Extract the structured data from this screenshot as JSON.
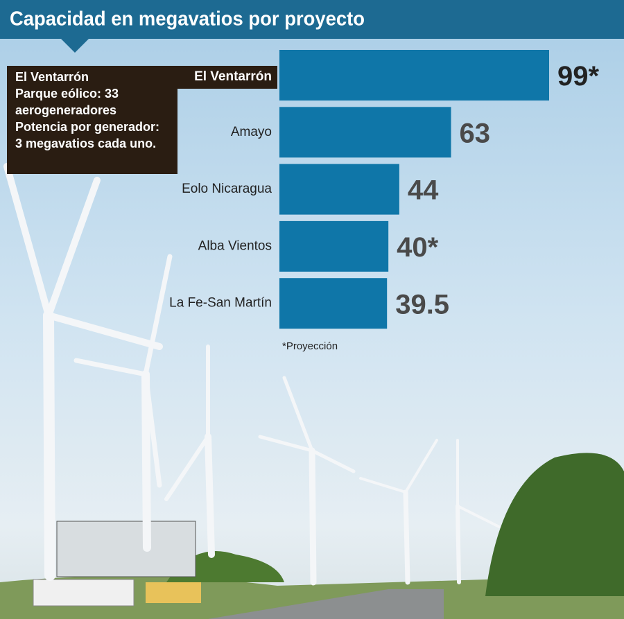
{
  "chart_data": {
    "type": "bar",
    "orientation": "horizontal",
    "title": "Capacidad en megavatios por proyecto",
    "categories": [
      "El Ventarrón",
      "Amayo",
      "Eolo Nicaragua",
      "Alba Vientos",
      "La Fe-San Martín"
    ],
    "values": [
      99,
      63,
      44,
      40,
      39.5
    ],
    "value_labels": [
      "99*",
      "63",
      "44",
      "40*",
      "39.5"
    ],
    "color": "#0f76a8",
    "note": "*Proyección",
    "info_box": [
      "El Ventarrón",
      "Parque eólico: 33",
      "aerogeneradores",
      "Potencia por generador:",
      "3 megavatios cada uno."
    ]
  }
}
